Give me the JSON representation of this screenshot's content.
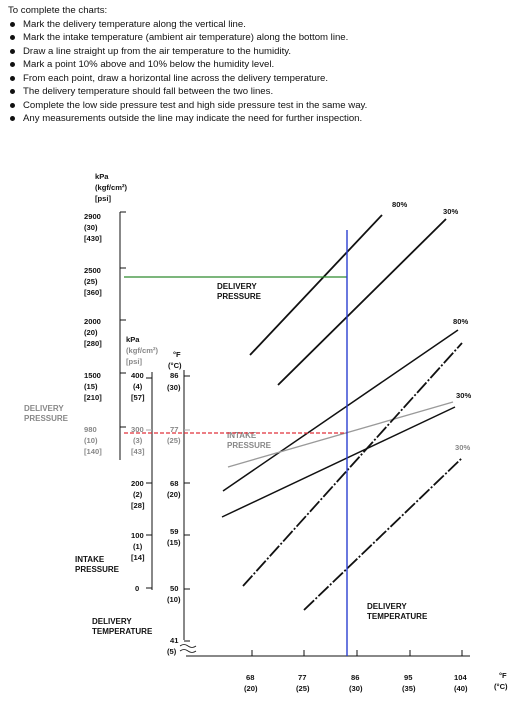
{
  "instructions": {
    "title": "To complete the charts:",
    "steps": [
      "Mark the delivery temperature along the vertical line.",
      "Mark the intake temperature (ambient air temperature) along the bottom line.",
      "Draw a line straight up from the air temperature to the humidity.",
      "Mark a point 10% above and 10% below the humidity level.",
      "From each point, draw a horizontal line across the delivery temperature.",
      "The delivery temperature should fall between the two lines.",
      "Complete the low side pressure test and high side pressure test in the same way.",
      "Any measurements outside the line may indicate the need for further inspection."
    ]
  },
  "chart_data": {
    "type": "line",
    "units": {
      "pressure": [
        "kPa",
        "(kgf/cm²)",
        "[psi]"
      ],
      "temperature": [
        "°F",
        "(°C)"
      ]
    },
    "delivery_pressure_axis": {
      "ticks": [
        {
          "kpa": "2900",
          "kgf": "(30)",
          "psi": "[430]"
        },
        {
          "kpa": "2500",
          "kgf": "(25)",
          "psi": "[360]"
        },
        {
          "kpa": "2000",
          "kgf": "(20)",
          "psi": "[280]"
        },
        {
          "kpa": "1500",
          "kgf": "(15)",
          "psi": "[210]"
        },
        {
          "kpa": "980",
          "kgf": "(10)",
          "psi": "[140]"
        }
      ]
    },
    "intake_pressure_axis": {
      "ticks": [
        {
          "kpa": "400",
          "kgf": "(4)",
          "psi": "[57]"
        },
        {
          "kpa": "300",
          "kgf": "(3)",
          "psi": "[43]"
        },
        {
          "kpa": "200",
          "kgf": "(2)",
          "psi": "[28]"
        },
        {
          "kpa": "100",
          "kgf": "(1)",
          "psi": "[14]"
        },
        {
          "kpa": "0",
          "kgf": "",
          "psi": ""
        }
      ]
    },
    "delivery_temperature_axis": {
      "ticks": [
        {
          "f": "86",
          "c": "(30)"
        },
        {
          "f": "77",
          "c": "(25)"
        },
        {
          "f": "68",
          "c": "(20)"
        },
        {
          "f": "59",
          "c": "(15)"
        },
        {
          "f": "50",
          "c": "(10)"
        },
        {
          "f": "41",
          "c": "(5)"
        }
      ]
    },
    "intake_temperature_axis": {
      "ticks": [
        {
          "f": "68",
          "c": "(20)"
        },
        {
          "f": "77",
          "c": "(25)"
        },
        {
          "f": "86",
          "c": "(30)"
        },
        {
          "f": "95",
          "c": "(35)"
        },
        {
          "f": "104",
          "c": "(40)"
        }
      ]
    },
    "labels": {
      "delivery_pressure_side": "DELIVERY PRESSURE",
      "delivery_pressure_region": "DELIVERY PRESSURE",
      "intake_pressure_side": "INTAKE PRESSURE",
      "intake_pressure_region": "INTAKE PRESSURE",
      "delivery_temperature_side": "DELIVERY TEMPERATURE",
      "delivery_temperature_region": "DELIVERY TEMPERATURE"
    },
    "humidity_labels": {
      "delivery_pressure_high": "80%",
      "delivery_pressure_low": "30%",
      "intake_pressure_high": "80%",
      "intake_pressure_low": "30%",
      "delivery_temp_high": "80%",
      "delivery_temp_low": "30%"
    },
    "reading": {
      "intake_temp_f": 86,
      "delivery_pressure_kpa": 2500,
      "intake_pressure_kpa": 300
    },
    "colors": {
      "reading_vertical": "#2b3fd1",
      "delivery_pressure_reading": "#2e8b2e",
      "intake_pressure_reading": "#e0303a",
      "gray_curves": "#9a9a9a"
    }
  }
}
